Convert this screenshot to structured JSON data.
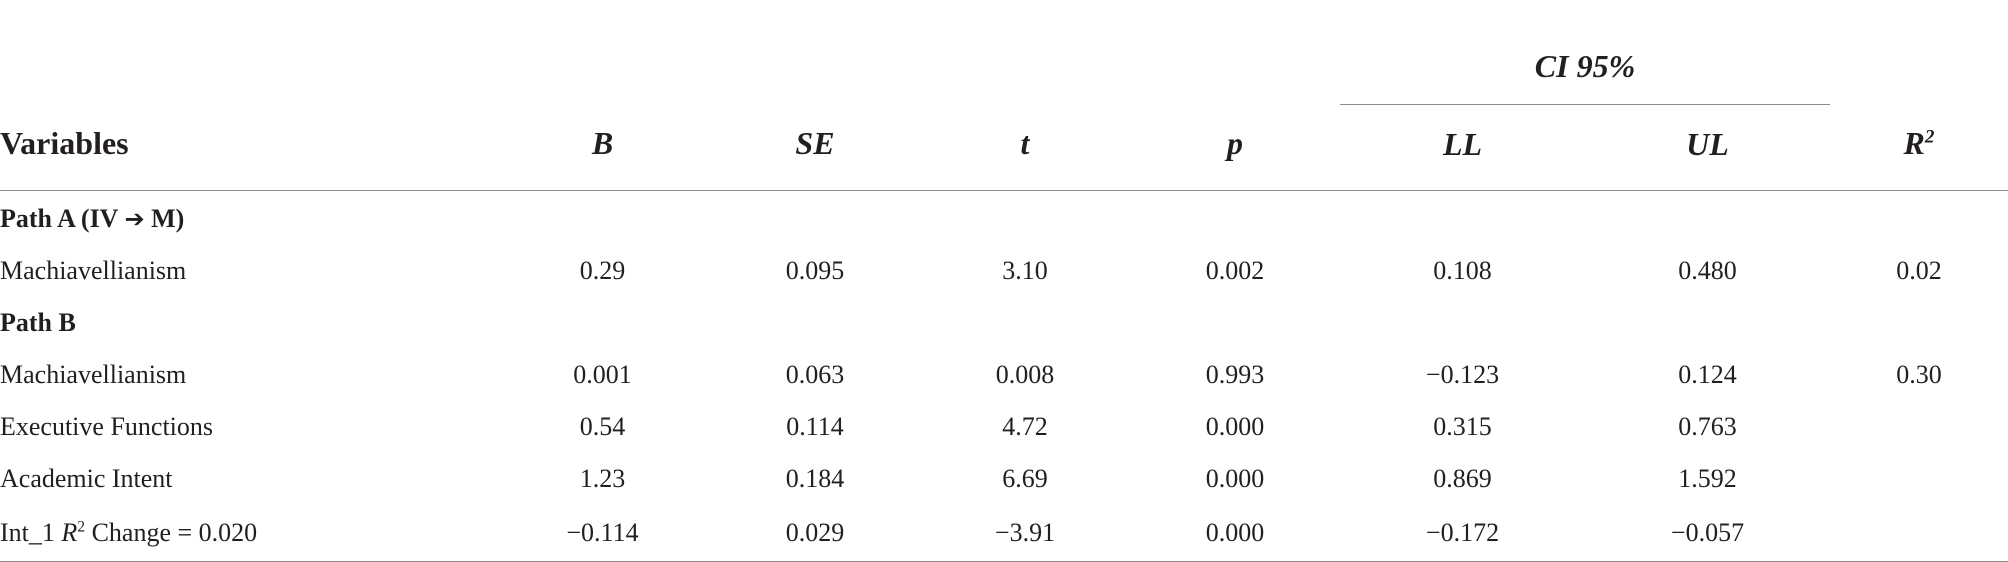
{
  "header": {
    "ci_group": "CI 95%",
    "variables": "Variables",
    "b": "B",
    "se": "SE",
    "t": "t",
    "p": "p",
    "ll": "LL",
    "ul": "UL",
    "r2_base": "R",
    "r2_sup": "2"
  },
  "sections": {
    "path_a_prefix": "Path A (IV ",
    "path_a_arrow": "➔",
    "path_a_suffix": " M)",
    "path_b": "Path B"
  },
  "rows": {
    "a1": {
      "label": "Machiavellianism",
      "b": "0.29",
      "se": "0.095",
      "t": "3.10",
      "p": "0.002",
      "ll": "0.108",
      "ul": "0.480",
      "r2": "0.02"
    },
    "b1": {
      "label": "Machiavellianism",
      "b": "0.001",
      "se": "0.063",
      "t": "0.008",
      "p": "0.993",
      "ll": "−0.123",
      "ul": "0.124",
      "r2": "0.30"
    },
    "b2": {
      "label": "Executive Functions",
      "b": "0.54",
      "se": "0.114",
      "t": "4.72",
      "p": "0.000",
      "ll": "0.315",
      "ul": "0.763",
      "r2": ""
    },
    "b3": {
      "label": "Academic Intent",
      "b": "1.23",
      "se": "0.184",
      "t": "6.69",
      "p": "0.000",
      "ll": "0.869",
      "ul": "1.592",
      "r2": ""
    },
    "b4": {
      "label_prefix": "Int_1 ",
      "label_r": "R",
      "label_sup": "2",
      "label_suffix": " Change = 0.020",
      "b": "−0.114",
      "se": "0.029",
      "t": "−3.91",
      "p": "0.000",
      "ll": "−0.172",
      "ul": "−0.057",
      "r2": ""
    }
  }
}
